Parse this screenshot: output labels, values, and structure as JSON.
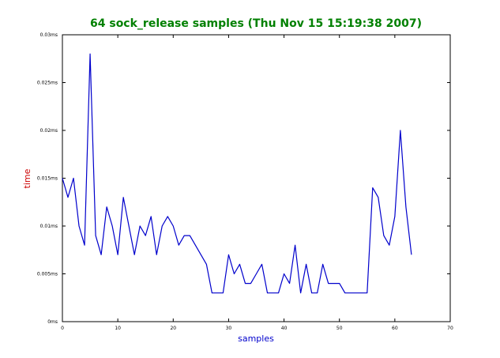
{
  "chart_data": {
    "type": "line",
    "title": "64 sock_release samples (Thu Nov 15 15:19:38 2007)",
    "xlabel": "samples",
    "ylabel": "time",
    "xlim": [
      0,
      70
    ],
    "ylim": [
      0,
      0.03
    ],
    "x_ticks": [
      "0",
      "10",
      "20",
      "30",
      "40",
      "50",
      "60",
      "70"
    ],
    "y_ticks": [
      "0ms",
      "0.005ms",
      "0.01ms",
      "0.015ms",
      "0.02ms",
      "0.025ms",
      "0.03ms"
    ],
    "grid": false,
    "colors": {
      "title": "#008000",
      "xlabel": "#0000cc",
      "ylabel": "#cc0000",
      "line": "#0000cc"
    },
    "series": [
      {
        "x": [
          0,
          1,
          2,
          3,
          4,
          5,
          6,
          7,
          8,
          9,
          10,
          11,
          12,
          13,
          14,
          15,
          16,
          17,
          18,
          19,
          20,
          21,
          22,
          23,
          24,
          25,
          26,
          27,
          28,
          29,
          30,
          31,
          32,
          33,
          34,
          35,
          36,
          37,
          38,
          39,
          40,
          41,
          42,
          43,
          44,
          45,
          46,
          47,
          48,
          49,
          50,
          51,
          52,
          53,
          54,
          55,
          56,
          57,
          58,
          59,
          60,
          61,
          62,
          63
        ],
        "values": [
          0.015,
          0.013,
          0.015,
          0.01,
          0.008,
          0.028,
          0.009,
          0.007,
          0.012,
          0.01,
          0.007,
          0.013,
          0.01,
          0.007,
          0.01,
          0.009,
          0.011,
          0.007,
          0.01,
          0.011,
          0.01,
          0.008,
          0.009,
          0.009,
          0.008,
          0.007,
          0.006,
          0.003,
          0.003,
          0.003,
          0.007,
          0.005,
          0.006,
          0.004,
          0.004,
          0.005,
          0.006,
          0.003,
          0.003,
          0.003,
          0.005,
          0.004,
          0.008,
          0.003,
          0.006,
          0.003,
          0.003,
          0.006,
          0.004,
          0.004,
          0.004,
          0.003,
          0.003,
          0.003,
          0.003,
          0.003,
          0.014,
          0.013,
          0.009,
          0.008,
          0.011,
          0.02,
          0.012,
          0.007
        ]
      }
    ]
  }
}
